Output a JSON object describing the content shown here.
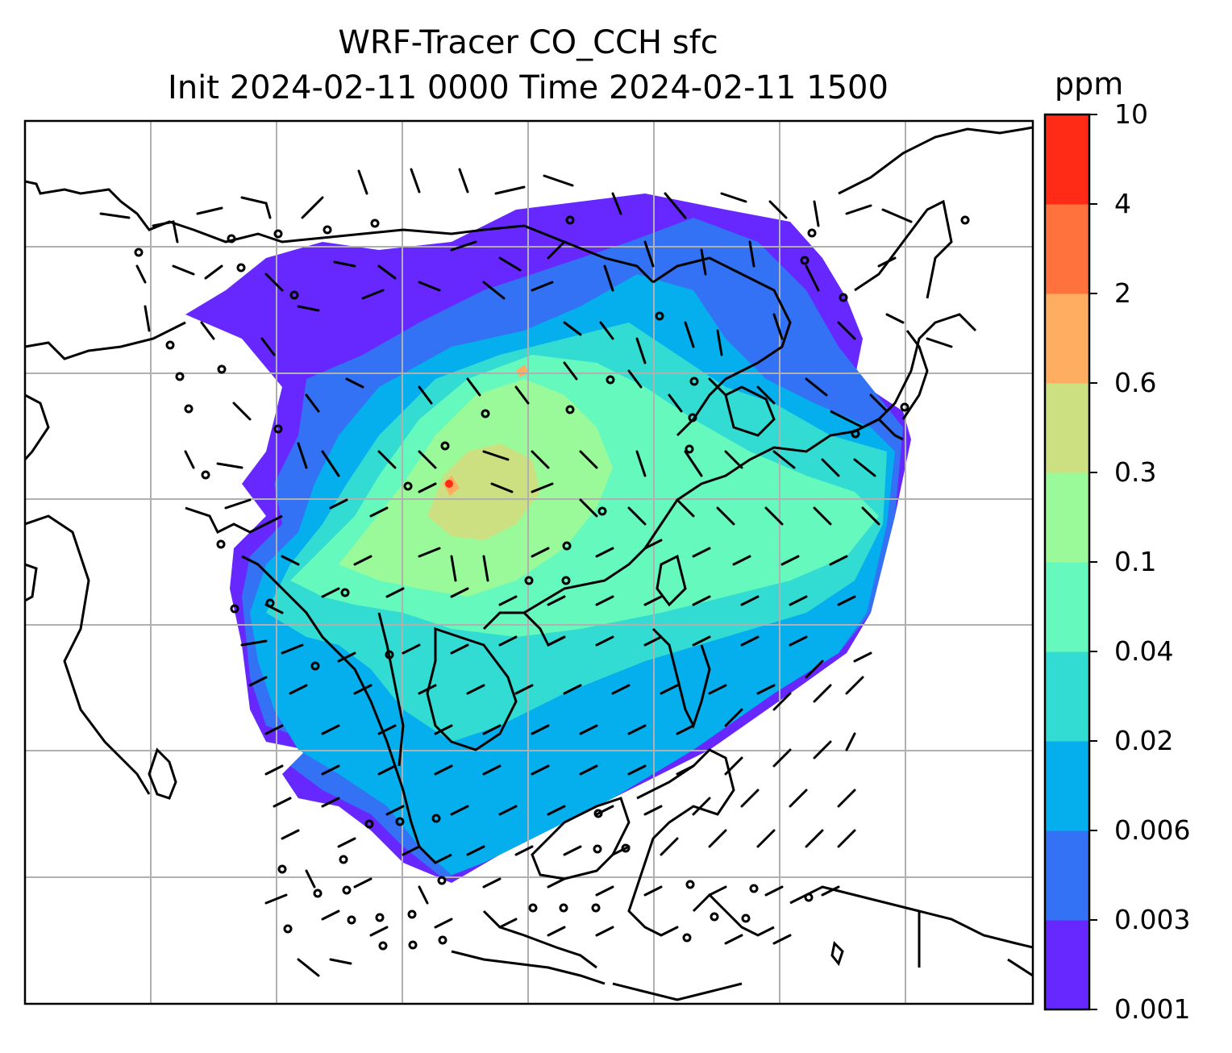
{
  "title": {
    "line1": "WRF-Tracer CO_CCH sfc",
    "line2": "Init 2024-02-11 0000 Time 2024-02-11 1500"
  },
  "colorbar": {
    "units": "ppm",
    "levels": [
      "0.001",
      "0.003",
      "0.006",
      "0.02",
      "0.04",
      "0.1",
      "0.3",
      "0.6",
      "2",
      "4",
      "10"
    ],
    "colors": [
      "#6628ff",
      "#3371f5",
      "#05aeec",
      "#33dcd3",
      "#66f9bd",
      "#9afa9a",
      "#cce081",
      "#ffae61",
      "#ff713d",
      "#ff2b16"
    ]
  },
  "map": {
    "gridlines": true,
    "features": [
      "coastlines",
      "borders",
      "wind-barbs",
      "tracer-concentration"
    ],
    "colors": {
      "grid": "#b0b0b0",
      "coast": "#000000"
    }
  }
}
